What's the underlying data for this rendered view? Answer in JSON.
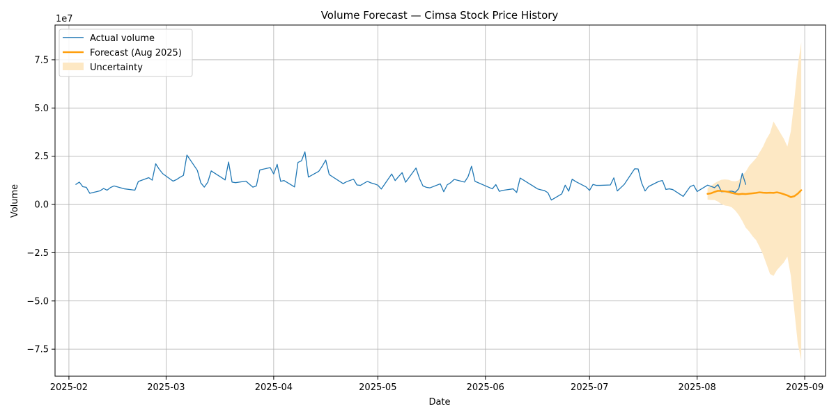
{
  "chart_data": {
    "type": "line",
    "title": "Volume Forecast — Cimsa Stock Price History",
    "xlabel": "Date",
    "ylabel": "Volume",
    "y_scale_label": "1e7",
    "x_range": [
      "2025-01-28",
      "2025-09-07"
    ],
    "ylim": [
      -89000000,
      93000000
    ],
    "grid": true,
    "legend_position": "upper-left",
    "x_ticks": [
      "2025-02",
      "2025-03",
      "2025-04",
      "2025-05",
      "2025-06",
      "2025-07",
      "2025-08",
      "2025-09"
    ],
    "y_ticks": [
      {
        "value": -75000000,
        "label": "−7.5"
      },
      {
        "value": -50000000,
        "label": "−5.0"
      },
      {
        "value": -25000000,
        "label": "−2.5"
      },
      {
        "value": 0,
        "label": "0.0"
      },
      {
        "value": 25000000,
        "label": "2.5"
      },
      {
        "value": 50000000,
        "label": "5.0"
      },
      {
        "value": 75000000,
        "label": "7.5"
      }
    ],
    "colors": {
      "actual": "#1f77b4",
      "forecast": "#ff9f0e",
      "uncertainty": "#fde8c4",
      "grid": "#b0b0b0"
    },
    "series": [
      {
        "name": "Actual volume",
        "kind": "line",
        "points": [
          [
            "2025-02-03",
            10400000
          ],
          [
            "2025-02-04",
            11600000
          ],
          [
            "2025-02-05",
            9200000
          ],
          [
            "2025-02-06",
            8900000
          ],
          [
            "2025-02-07",
            5800000
          ],
          [
            "2025-02-10",
            7100000
          ],
          [
            "2025-02-11",
            8300000
          ],
          [
            "2025-02-12",
            7400000
          ],
          [
            "2025-02-13",
            8800000
          ],
          [
            "2025-02-14",
            9600000
          ],
          [
            "2025-02-17",
            8100000
          ],
          [
            "2025-02-20",
            7400000
          ],
          [
            "2025-02-21",
            11900000
          ],
          [
            "2025-02-24",
            13900000
          ],
          [
            "2025-02-25",
            12600000
          ],
          [
            "2025-02-26",
            21100000
          ],
          [
            "2025-02-27",
            18300000
          ],
          [
            "2025-02-28",
            16000000
          ],
          [
            "2025-03-03",
            12100000
          ],
          [
            "2025-03-04",
            12900000
          ],
          [
            "2025-03-05",
            14100000
          ],
          [
            "2025-03-06",
            15100000
          ],
          [
            "2025-03-07",
            25600000
          ],
          [
            "2025-03-10",
            17700000
          ],
          [
            "2025-03-11",
            11200000
          ],
          [
            "2025-03-12",
            9000000
          ],
          [
            "2025-03-13",
            11500000
          ],
          [
            "2025-03-14",
            17400000
          ],
          [
            "2025-03-17",
            13900000
          ],
          [
            "2025-03-18",
            12700000
          ],
          [
            "2025-03-19",
            22000000
          ],
          [
            "2025-03-20",
            11600000
          ],
          [
            "2025-03-21",
            11300000
          ],
          [
            "2025-03-24",
            12100000
          ],
          [
            "2025-03-25",
            10500000
          ],
          [
            "2025-03-26",
            9000000
          ],
          [
            "2025-03-27",
            9600000
          ],
          [
            "2025-03-28",
            17900000
          ],
          [
            "2025-03-31",
            19100000
          ],
          [
            "2025-04-01",
            15800000
          ],
          [
            "2025-04-02",
            20800000
          ],
          [
            "2025-04-03",
            12000000
          ],
          [
            "2025-04-04",
            12400000
          ],
          [
            "2025-04-07",
            9100000
          ],
          [
            "2025-04-08",
            21800000
          ],
          [
            "2025-04-09",
            22600000
          ],
          [
            "2025-04-10",
            27300000
          ],
          [
            "2025-04-11",
            14200000
          ],
          [
            "2025-04-14",
            17200000
          ],
          [
            "2025-04-15",
            19900000
          ],
          [
            "2025-04-16",
            23000000
          ],
          [
            "2025-04-17",
            15500000
          ],
          [
            "2025-04-18",
            14300000
          ],
          [
            "2025-04-21",
            10800000
          ],
          [
            "2025-04-22",
            11800000
          ],
          [
            "2025-04-24",
            13100000
          ],
          [
            "2025-04-25",
            10100000
          ],
          [
            "2025-04-26",
            9900000
          ],
          [
            "2025-04-28",
            12000000
          ],
          [
            "2025-04-29",
            11200000
          ],
          [
            "2025-04-30",
            10700000
          ],
          [
            "2025-05-01",
            10000000
          ],
          [
            "2025-05-02",
            8000000
          ],
          [
            "2025-05-05",
            15800000
          ],
          [
            "2025-05-06",
            12400000
          ],
          [
            "2025-05-07",
            14500000
          ],
          [
            "2025-05-08",
            16500000
          ],
          [
            "2025-05-09",
            11500000
          ],
          [
            "2025-05-12",
            18900000
          ],
          [
            "2025-05-13",
            13500000
          ],
          [
            "2025-05-14",
            9600000
          ],
          [
            "2025-05-15",
            8900000
          ],
          [
            "2025-05-16",
            8600000
          ],
          [
            "2025-05-19",
            10700000
          ],
          [
            "2025-05-20",
            6600000
          ],
          [
            "2025-05-21",
            10200000
          ],
          [
            "2025-05-22",
            11300000
          ],
          [
            "2025-05-23",
            13000000
          ],
          [
            "2025-05-26",
            11600000
          ],
          [
            "2025-05-27",
            14400000
          ],
          [
            "2025-05-28",
            19800000
          ],
          [
            "2025-05-29",
            12000000
          ],
          [
            "2025-06-03",
            8100000
          ],
          [
            "2025-06-04",
            10300000
          ],
          [
            "2025-06-05",
            6800000
          ],
          [
            "2025-06-06",
            7300000
          ],
          [
            "2025-06-09",
            8100000
          ],
          [
            "2025-06-10",
            6200000
          ],
          [
            "2025-06-11",
            13700000
          ],
          [
            "2025-06-12",
            12600000
          ],
          [
            "2025-06-13",
            11500000
          ],
          [
            "2025-06-16",
            8100000
          ],
          [
            "2025-06-17",
            7600000
          ],
          [
            "2025-06-18",
            7200000
          ],
          [
            "2025-06-19",
            6100000
          ],
          [
            "2025-06-20",
            2300000
          ],
          [
            "2025-06-23",
            5500000
          ],
          [
            "2025-06-24",
            10000000
          ],
          [
            "2025-06-25",
            6900000
          ],
          [
            "2025-06-26",
            13100000
          ],
          [
            "2025-06-27",
            11900000
          ],
          [
            "2025-06-30",
            9100000
          ],
          [
            "2025-07-01",
            7300000
          ],
          [
            "2025-07-02",
            10400000
          ],
          [
            "2025-07-03",
            9900000
          ],
          [
            "2025-07-04",
            9900000
          ],
          [
            "2025-07-07",
            10100000
          ],
          [
            "2025-07-08",
            13800000
          ],
          [
            "2025-07-09",
            7000000
          ],
          [
            "2025-07-11",
            10400000
          ],
          [
            "2025-07-14",
            18500000
          ],
          [
            "2025-07-15",
            18400000
          ],
          [
            "2025-07-16",
            11200000
          ],
          [
            "2025-07-17",
            7000000
          ],
          [
            "2025-07-18",
            9300000
          ],
          [
            "2025-07-21",
            12000000
          ],
          [
            "2025-07-22",
            12400000
          ],
          [
            "2025-07-23",
            7800000
          ],
          [
            "2025-07-24",
            8100000
          ],
          [
            "2025-07-25",
            7700000
          ],
          [
            "2025-07-28",
            4200000
          ],
          [
            "2025-07-30",
            9300000
          ],
          [
            "2025-07-31",
            10000000
          ],
          [
            "2025-08-01",
            6700000
          ],
          [
            "2025-08-04",
            10000000
          ],
          [
            "2025-08-05",
            9400000
          ],
          [
            "2025-08-06",
            8700000
          ],
          [
            "2025-08-07",
            10300000
          ],
          [
            "2025-08-08",
            6600000
          ],
          [
            "2025-08-11",
            6900000
          ],
          [
            "2025-08-12",
            6300000
          ],
          [
            "2025-08-13",
            8200000
          ],
          [
            "2025-08-14",
            16100000
          ],
          [
            "2025-08-15",
            10400000
          ]
        ]
      },
      {
        "name": "Forecast (Aug 2025)",
        "kind": "line",
        "points": [
          [
            "2025-08-04",
            5500000
          ],
          [
            "2025-08-05",
            5800000
          ],
          [
            "2025-08-06",
            6500000
          ],
          [
            "2025-08-07",
            7100000
          ],
          [
            "2025-08-08",
            7000000
          ],
          [
            "2025-08-09",
            6800000
          ],
          [
            "2025-08-10",
            6500000
          ],
          [
            "2025-08-11",
            6000000
          ],
          [
            "2025-08-12",
            5600000
          ],
          [
            "2025-08-13",
            5300000
          ],
          [
            "2025-08-14",
            5500000
          ],
          [
            "2025-08-15",
            5400000
          ],
          [
            "2025-08-16",
            5600000
          ],
          [
            "2025-08-17",
            5800000
          ],
          [
            "2025-08-18",
            6000000
          ],
          [
            "2025-08-19",
            6300000
          ],
          [
            "2025-08-20",
            6100000
          ],
          [
            "2025-08-21",
            6000000
          ],
          [
            "2025-08-22",
            6100000
          ],
          [
            "2025-08-23",
            6000000
          ],
          [
            "2025-08-24",
            6300000
          ],
          [
            "2025-08-25",
            5900000
          ],
          [
            "2025-08-26",
            5300000
          ],
          [
            "2025-08-27",
            4700000
          ],
          [
            "2025-08-28",
            3800000
          ],
          [
            "2025-08-29",
            4300000
          ],
          [
            "2025-08-30",
            5600000
          ],
          [
            "2025-08-31",
            7400000
          ]
        ]
      },
      {
        "name": "Uncertainty",
        "kind": "band",
        "upper": [
          [
            "2025-08-04",
            8500000
          ],
          [
            "2025-08-05",
            9600000
          ],
          [
            "2025-08-06",
            11000000
          ],
          [
            "2025-08-07",
            12000000
          ],
          [
            "2025-08-08",
            12800000
          ],
          [
            "2025-08-09",
            13000000
          ],
          [
            "2025-08-10",
            12800000
          ],
          [
            "2025-08-11",
            12200000
          ],
          [
            "2025-08-12",
            12000000
          ],
          [
            "2025-08-13",
            12500000
          ],
          [
            "2025-08-14",
            15000000
          ],
          [
            "2025-08-15",
            17000000
          ],
          [
            "2025-08-16",
            20000000
          ],
          [
            "2025-08-17",
            22000000
          ],
          [
            "2025-08-18",
            24000000
          ],
          [
            "2025-08-19",
            27000000
          ],
          [
            "2025-08-20",
            30000000
          ],
          [
            "2025-08-21",
            34000000
          ],
          [
            "2025-08-22",
            37000000
          ],
          [
            "2025-08-23",
            43000000
          ],
          [
            "2025-08-24",
            40000000
          ],
          [
            "2025-08-25",
            37000000
          ],
          [
            "2025-08-26",
            34000000
          ],
          [
            "2025-08-27",
            30000000
          ],
          [
            "2025-08-28",
            38000000
          ],
          [
            "2025-08-29",
            54000000
          ],
          [
            "2025-08-30",
            72000000
          ],
          [
            "2025-08-31",
            84000000
          ]
        ],
        "lower": [
          [
            "2025-08-04",
            2500000
          ],
          [
            "2025-08-05",
            2300000
          ],
          [
            "2025-08-06",
            2300000
          ],
          [
            "2025-08-07",
            1500000
          ],
          [
            "2025-08-08",
            200000
          ],
          [
            "2025-08-09",
            -500000
          ],
          [
            "2025-08-10",
            -800000
          ],
          [
            "2025-08-11",
            -1500000
          ],
          [
            "2025-08-12",
            -3200000
          ],
          [
            "2025-08-13",
            -5500000
          ],
          [
            "2025-08-14",
            -8500000
          ],
          [
            "2025-08-15",
            -12000000
          ],
          [
            "2025-08-16",
            -14000000
          ],
          [
            "2025-08-17",
            -16500000
          ],
          [
            "2025-08-18",
            -18500000
          ],
          [
            "2025-08-19",
            -22000000
          ],
          [
            "2025-08-20",
            -26000000
          ],
          [
            "2025-08-21",
            -31000000
          ],
          [
            "2025-08-22",
            -36000000
          ],
          [
            "2025-08-23",
            -37000000
          ],
          [
            "2025-08-24",
            -34000000
          ],
          [
            "2025-08-25",
            -32000000
          ],
          [
            "2025-08-26",
            -30000000
          ],
          [
            "2025-08-27",
            -27000000
          ],
          [
            "2025-08-28",
            -37000000
          ],
          [
            "2025-08-29",
            -55000000
          ],
          [
            "2025-08-30",
            -72000000
          ],
          [
            "2025-08-31",
            -81000000
          ]
        ]
      }
    ]
  }
}
